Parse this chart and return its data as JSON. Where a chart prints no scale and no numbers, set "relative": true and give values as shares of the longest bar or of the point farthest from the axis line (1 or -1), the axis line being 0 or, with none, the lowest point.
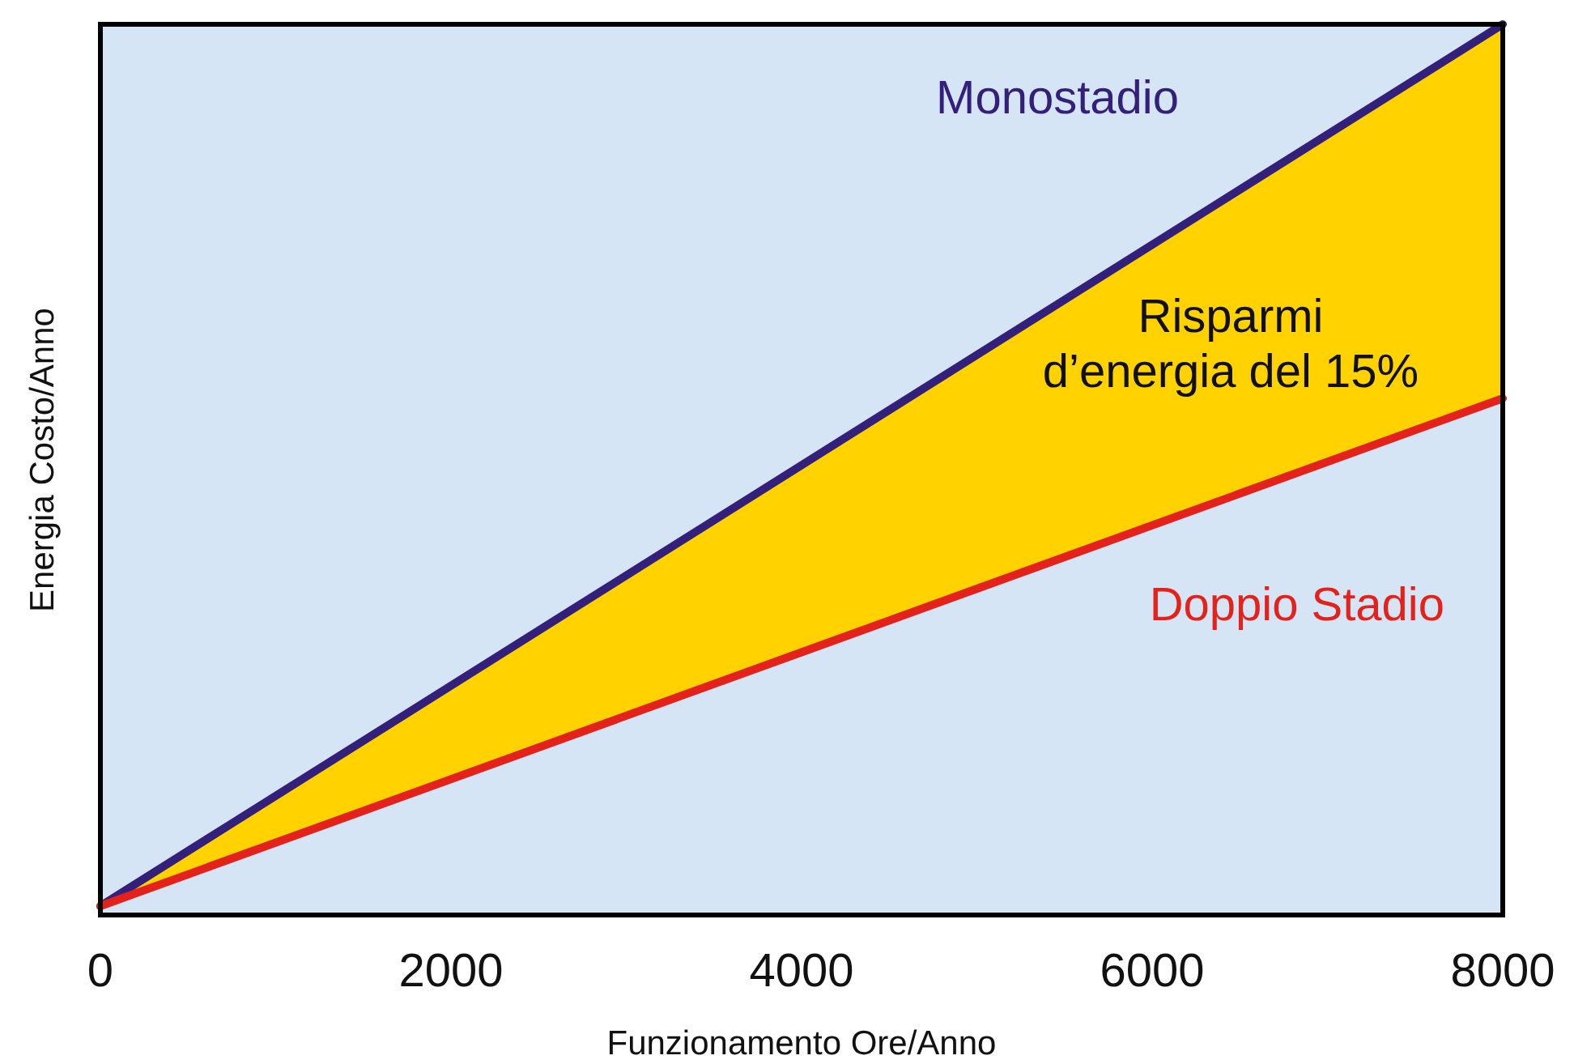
{
  "chart_data": {
    "type": "line",
    "relative": true,
    "xlabel": "Funzionamento Ore/Anno",
    "ylabel": "Energia Costo/Anno",
    "x": [
      0,
      8000
    ],
    "xlim": [
      0,
      8000
    ],
    "xticks": [
      0,
      2000,
      4000,
      6000,
      8000
    ],
    "grid": false,
    "marker": "none",
    "line_style": "solid",
    "series": [
      {
        "name": "Monostadio",
        "color": "#32207a",
        "values": [
          0.01,
          1
        ]
      },
      {
        "name": "Doppio Stadio",
        "color": "#e3231b",
        "values": [
          0.01,
          0.58
        ]
      }
    ],
    "annotations": [
      "Risparmi\nd’energia del 15%"
    ]
  }
}
